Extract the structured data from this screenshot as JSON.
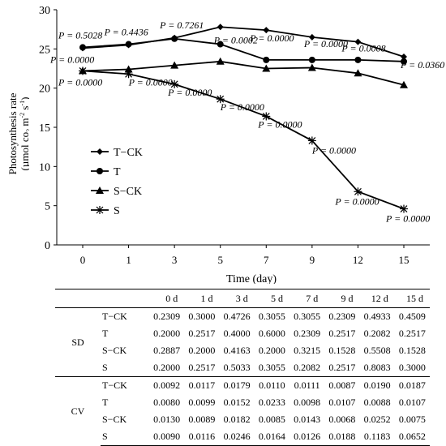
{
  "chart_data": {
    "type": "line",
    "ylabel_line1": "Photosynthesis rate",
    "ylabel_line2_pre": "(µmol co",
    "ylabel_line2_sub": "2",
    "ylabel_line2_mid": " m",
    "ylabel_line2_sup1": "-2",
    "ylabel_line2_s": " s",
    "ylabel_line2_sup2": "-1",
    "ylabel_line2_post": ")",
    "xlabel": "Time (day)",
    "categories": [
      "0",
      "1",
      "3",
      "5",
      "7",
      "9",
      "12",
      "15"
    ],
    "ylim": [
      0,
      30
    ],
    "yticks": [
      "0",
      "5",
      "10",
      "15",
      "20",
      "25",
      "30"
    ],
    "legend_position": "middle-left",
    "series": [
      {
        "name": "T−CK",
        "marker": "diamond",
        "values": [
          25.1,
          25.5,
          26.4,
          27.8,
          27.4,
          26.5,
          25.9,
          24.0
        ]
      },
      {
        "name": "T",
        "marker": "circle",
        "values": [
          25.2,
          25.6,
          26.3,
          25.6,
          23.6,
          23.6,
          23.6,
          23.4
        ]
      },
      {
        "name": "S−CK",
        "marker": "triangle",
        "values": [
          22.2,
          22.4,
          22.9,
          23.4,
          22.5,
          22.6,
          21.9,
          20.4
        ]
      },
      {
        "name": "S",
        "marker": "star",
        "values": [
          22.2,
          21.8,
          20.5,
          18.6,
          16.4,
          13.3,
          6.8,
          4.6
        ]
      }
    ],
    "annotations_upper": [
      "P = 0.5028",
      "P = 0.4436",
      "P = 0.7261",
      "P = 0.0002",
      "P = 0.0000",
      "P = 0.0000",
      "P = 0.0008",
      "P = 0.0360"
    ],
    "annotations_lower": [
      "P = 0.0000",
      "P = 0.0000",
      "P = 0.0000",
      "P = 0.0000",
      "P = 0.0000",
      "P = 0.0000",
      "P = 0.0000",
      "P = 0.0000"
    ],
    "annotation_left_upper": "P = 0.0000"
  },
  "table": {
    "columns": [
      "0 d",
      "1 d",
      "3 d",
      "5 d",
      "7 d",
      "9 d",
      "12 d",
      "15 d"
    ],
    "groups": [
      {
        "label": "SD",
        "rows": [
          {
            "name": "T−CK",
            "values": [
              "0.2309",
              "0.3000",
              "0.4726",
              "0.3055",
              "0.3055",
              "0.2309",
              "0.4933",
              "0.4509"
            ]
          },
          {
            "name": "T",
            "values": [
              "0.2000",
              "0.2517",
              "0.4000",
              "0.6000",
              "0.2309",
              "0.2517",
              "0.2082",
              "0.2517"
            ]
          },
          {
            "name": "S−CK",
            "values": [
              "0.2887",
              "0.2000",
              "0.4163",
              "0.2000",
              "0.3215",
              "0.1528",
              "0.5508",
              "0.1528"
            ]
          },
          {
            "name": "S",
            "values": [
              "0.2000",
              "0.2517",
              "0.5033",
              "0.3055",
              "0.2082",
              "0.2517",
              "0.8083",
              "0.3000"
            ]
          }
        ]
      },
      {
        "label": "CV",
        "rows": [
          {
            "name": "T−CK",
            "values": [
              "0.0092",
              "0.0117",
              "0.0179",
              "0.0110",
              "0.0111",
              "0.0087",
              "0.0190",
              "0.0187"
            ]
          },
          {
            "name": "T",
            "values": [
              "0.0080",
              "0.0099",
              "0.0152",
              "0.0233",
              "0.0098",
              "0.0107",
              "0.0088",
              "0.0107"
            ]
          },
          {
            "name": "S−CK",
            "values": [
              "0.0130",
              "0.0089",
              "0.0182",
              "0.0085",
              "0.0143",
              "0.0068",
              "0.0252",
              "0.0075"
            ]
          },
          {
            "name": "S",
            "values": [
              "0.0090",
              "0.0116",
              "0.0246",
              "0.0164",
              "0.0126",
              "0.0188",
              "0.1183",
              "0.0652"
            ]
          }
        ]
      }
    ]
  }
}
